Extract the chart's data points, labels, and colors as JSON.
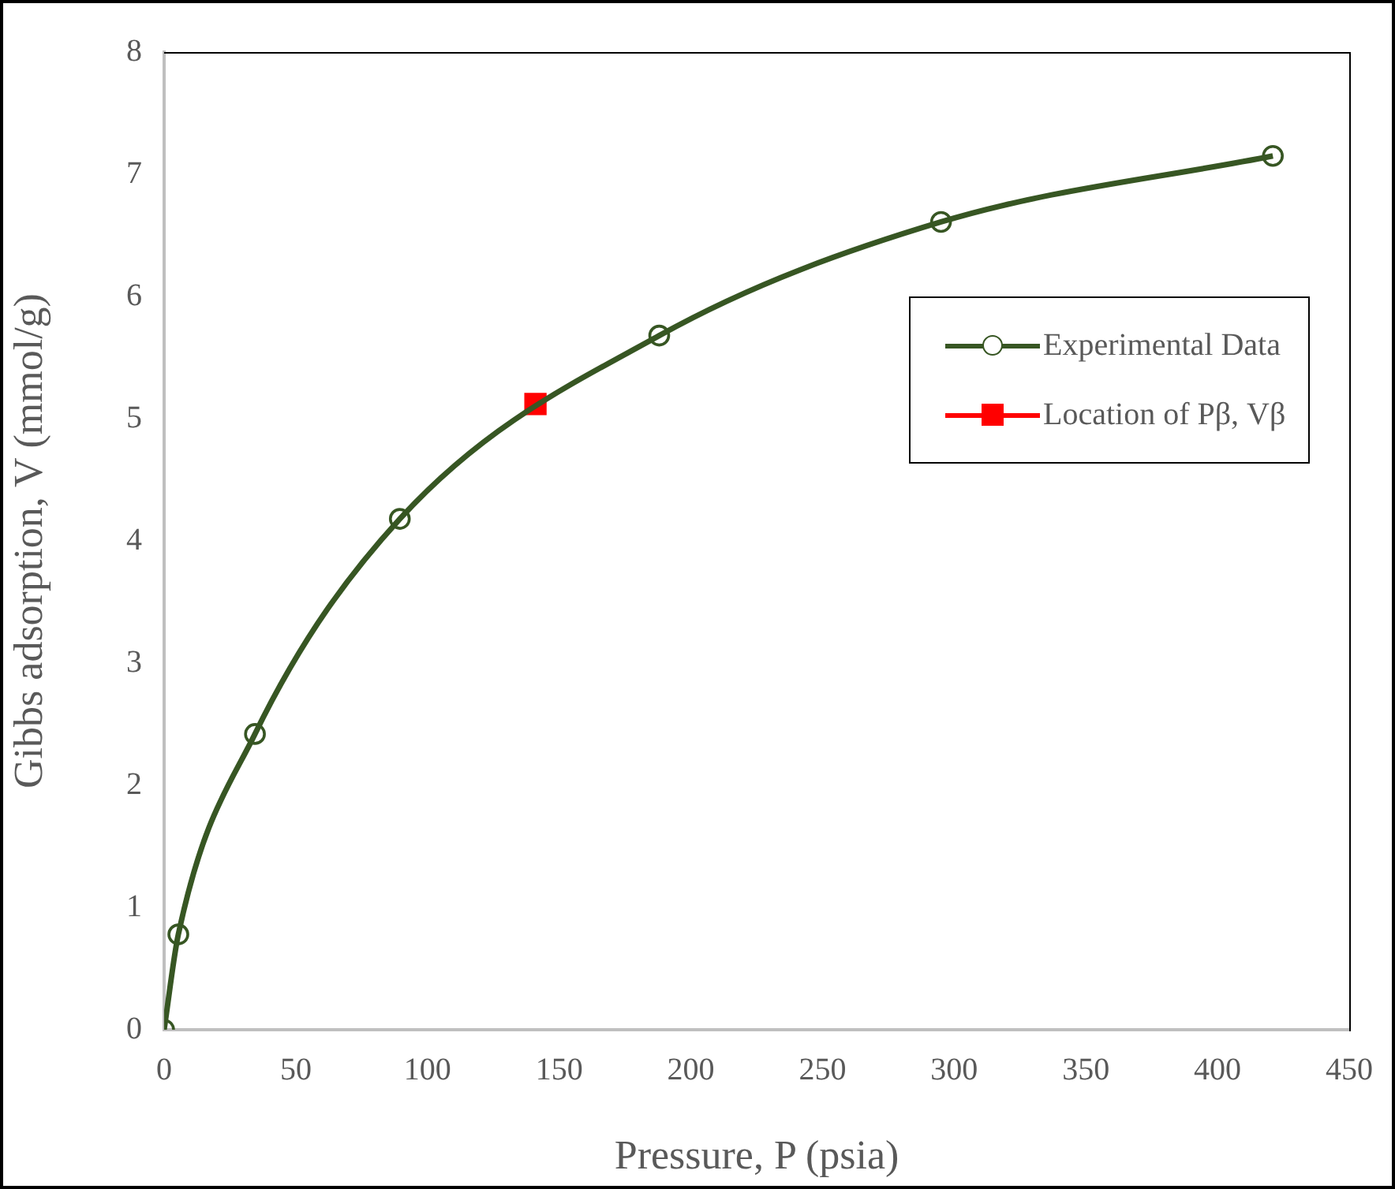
{
  "chart_data": {
    "type": "line",
    "xlabel": "Pressure, P (psia)",
    "ylabel": "Gibbs adsorption, V (mmol/g)",
    "xlim": [
      0,
      450
    ],
    "xticks": [
      0,
      50,
      100,
      150,
      200,
      250,
      300,
      350,
      400,
      450
    ],
    "ylim": [
      0,
      8
    ],
    "yticks": [
      0,
      1,
      2,
      3,
      4,
      5,
      6,
      7,
      8
    ],
    "grid": false,
    "legend": "right",
    "line_style": "solid",
    "series": [
      {
        "name": "Experimental Data",
        "color": "#375623",
        "type": "line",
        "marker": "circle",
        "x": [
          0,
          5.4,
          34.5,
          89.5,
          188,
          295,
          421
        ],
        "values": [
          0,
          0.78,
          2.42,
          4.18,
          5.68,
          6.61,
          7.15
        ]
      },
      {
        "name": "Location of Pβ, Vβ",
        "color": "#ff0000",
        "type": "scatter",
        "marker": "square",
        "x": [
          141
        ],
        "values": [
          5.12
        ]
      }
    ]
  }
}
